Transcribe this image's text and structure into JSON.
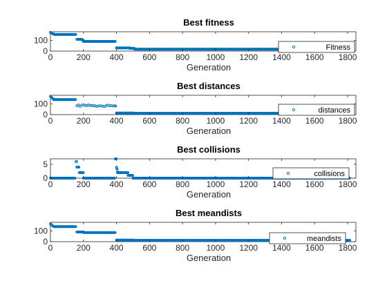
{
  "chart_data": [
    {
      "type": "scatter",
      "title": "Best fitness",
      "xlabel": "Generation",
      "ylabel": "",
      "xlim": [
        0,
        1850
      ],
      "ylim": [
        0,
        180
      ],
      "xticks": [
        0,
        200,
        400,
        600,
        800,
        1000,
        1200,
        1400,
        1600,
        1800
      ],
      "yticks": [
        0,
        100
      ],
      "grid": false,
      "legend": "inside right",
      "series": [
        {
          "name": "Fitness",
          "color": "#0072BD",
          "marker": "circle",
          "segments": [
            {
              "x": [
                0,
                5,
                10,
                15,
                20,
                25
              ],
              "y": [
                175,
                170,
                165,
                160,
                158,
                156
              ]
            },
            {
              "x_start": 25,
              "x_end": 155,
              "y": 155
            },
            {
              "x_start": 160,
              "x_end": 195,
              "y": 110
            },
            {
              "x_start": 195,
              "x_end": 200,
              "y": 100
            },
            {
              "x_start": 200,
              "x_end": 395,
              "y": 90
            },
            {
              "x_start": 400,
              "x_end": 480,
              "y": 30
            },
            {
              "x_start": 480,
              "x_end": 510,
              "y": 25
            },
            {
              "x_start": 510,
              "x_end": 1815,
              "y": 18
            }
          ]
        }
      ]
    },
    {
      "type": "scatter",
      "title": "Best distances",
      "xlabel": "Generation",
      "ylabel": "",
      "xlim": [
        0,
        1850
      ],
      "ylim": [
        0,
        180
      ],
      "xticks": [
        0,
        200,
        400,
        600,
        800,
        1000,
        1200,
        1400,
        1600,
        1800
      ],
      "yticks": [
        0,
        100
      ],
      "grid": false,
      "legend": "inside right",
      "series": [
        {
          "name": "distances",
          "color": "#0072BD",
          "marker": "circle",
          "segments": [
            {
              "x": [
                0,
                5,
                10,
                15,
                20
              ],
              "y": [
                170,
                162,
                155,
                148,
                143
              ]
            },
            {
              "x_start": 20,
              "x_end": 155,
              "y": 140
            },
            {
              "x": [
                160,
                170,
                180,
                190,
                200,
                210,
                220,
                230,
                240,
                250,
                260,
                270,
                280,
                290,
                300,
                310,
                320,
                330,
                340,
                350,
                360,
                370,
                380,
                390,
                395
              ],
              "y": [
                82,
                90,
                78,
                88,
                92,
                86,
                84,
                90,
                85,
                86,
                83,
                82,
                78,
                80,
                83,
                80,
                78,
                76,
                86,
                88,
                82,
                84,
                80,
                82,
                80
              ]
            },
            {
              "x_start": 400,
              "x_end": 505,
              "y": 15
            },
            {
              "x_start": 505,
              "x_end": 1815,
              "y": 12
            }
          ]
        }
      ]
    },
    {
      "type": "scatter",
      "title": "Best collisions",
      "xlabel": "Generation",
      "ylabel": "",
      "xlim": [
        0,
        1850
      ],
      "ylim": [
        0,
        7
      ],
      "xticks": [
        0,
        200,
        400,
        600,
        800,
        1000,
        1200,
        1400,
        1600,
        1800
      ],
      "yticks": [
        0,
        5
      ],
      "grid": false,
      "legend": "inside right",
      "series": [
        {
          "name": "collisions",
          "color": "#0072BD",
          "marker": "circle",
          "segments": [
            {
              "x_start": 0,
              "x_end": 150,
              "y": 0
            },
            {
              "x": [
                155,
                158
              ],
              "y": [
                6,
                6
              ]
            },
            {
              "x_start": 160,
              "x_end": 175,
              "y": 4
            },
            {
              "x_start": 175,
              "x_end": 200,
              "y": 2
            },
            {
              "x_start": 200,
              "x_end": 390,
              "y": 0
            },
            {
              "x": [
                393,
                396,
                398
              ],
              "y": [
                7,
                7,
                7
              ]
            },
            {
              "x": [
                400,
                402,
                405
              ],
              "y": [
                4,
                3.5,
                3
              ]
            },
            {
              "x_start": 405,
              "x_end": 470,
              "y": 2
            },
            {
              "x_start": 470,
              "x_end": 500,
              "y": 1
            },
            {
              "x_start": 500,
              "x_end": 1815,
              "y": 0
            }
          ]
        }
      ]
    },
    {
      "type": "scatter",
      "title": "Best meandists",
      "xlabel": "Generation",
      "ylabel": "",
      "xlim": [
        0,
        1850
      ],
      "ylim": [
        0,
        180
      ],
      "xticks": [
        0,
        200,
        400,
        600,
        800,
        1000,
        1200,
        1400,
        1600,
        1800
      ],
      "yticks": [
        0,
        100
      ],
      "grid": false,
      "legend": "inside right",
      "series": [
        {
          "name": "meandists",
          "color": "#0072BD",
          "marker": "circle",
          "segments": [
            {
              "x": [
                0,
                5,
                10,
                15,
                20,
                25
              ],
              "y": [
                165,
                158,
                152,
                146,
                142,
                140
              ]
            },
            {
              "x_start": 25,
              "x_end": 155,
              "y": 140
            },
            {
              "x_start": 160,
              "x_end": 200,
              "y": 90
            },
            {
              "x_start": 200,
              "x_end": 395,
              "y": 85
            },
            {
              "x_start": 400,
              "x_end": 505,
              "y": 15
            },
            {
              "x_start": 505,
              "x_end": 1815,
              "y": 12
            }
          ]
        }
      ]
    }
  ]
}
